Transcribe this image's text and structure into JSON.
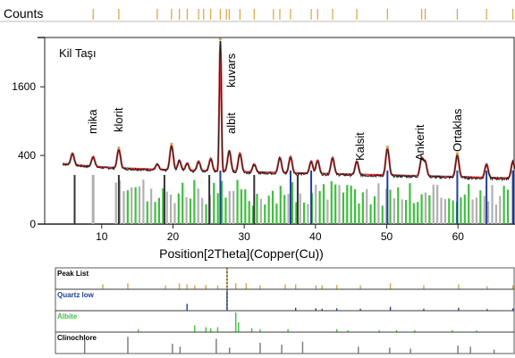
{
  "colors": {
    "peak_tick": "#d9a23f",
    "observed": "#1a1a1a",
    "calculated": "#cc2a2a",
    "quartz": "#1f3f9a",
    "albite": "#3fbf3f",
    "mica_bar": "#b0b0b0",
    "clinochlore": "#777777",
    "frame": "#222222"
  },
  "chart_data": {
    "type": "line",
    "title": "Kil Taşı",
    "counts_label": "Counts",
    "xlabel": "Position[2Theta](Copper(Cu))",
    "ylabel": "Counts",
    "xlim": [
      2,
      68
    ],
    "x_ticks": [
      10,
      20,
      30,
      40,
      50,
      60
    ],
    "y_ticks": [
      {
        "value": 0,
        "label": "0"
      },
      {
        "value": 400,
        "label": "400"
      },
      {
        "value": 1600,
        "label": "1600"
      }
    ],
    "y_scale": "sqrt",
    "ylim": [
      0,
      2900
    ],
    "grid": false,
    "background_level": 260,
    "peaks": [
      {
        "x": 5.9,
        "y": 420
      },
      {
        "x": 8.8,
        "y": 380
      },
      {
        "x": 12.4,
        "y": 470
      },
      {
        "x": 17.8,
        "y": 300
      },
      {
        "x": 19.8,
        "y": 520
      },
      {
        "x": 20.9,
        "y": 340
      },
      {
        "x": 22.0,
        "y": 310
      },
      {
        "x": 23.6,
        "y": 330
      },
      {
        "x": 25.3,
        "y": 360
      },
      {
        "x": 26.65,
        "y": 2850
      },
      {
        "x": 27.9,
        "y": 450
      },
      {
        "x": 29.4,
        "y": 420
      },
      {
        "x": 31.4,
        "y": 300
      },
      {
        "x": 35.0,
        "y": 370
      },
      {
        "x": 36.5,
        "y": 380
      },
      {
        "x": 39.4,
        "y": 330
      },
      {
        "x": 40.3,
        "y": 340
      },
      {
        "x": 42.4,
        "y": 370
      },
      {
        "x": 45.8,
        "y": 330
      },
      {
        "x": 50.1,
        "y": 480
      },
      {
        "x": 54.9,
        "y": 360
      },
      {
        "x": 55.4,
        "y": 320
      },
      {
        "x": 59.9,
        "y": 400
      },
      {
        "x": 64.0,
        "y": 300
      },
      {
        "x": 67.7,
        "y": 330
      }
    ],
    "annotations": [
      {
        "text": "mika",
        "x": 8.8
      },
      {
        "text": "klorit",
        "x": 12.4
      },
      {
        "text": "kuvars",
        "x": 28.2
      },
      {
        "text": "albit",
        "x": 28.2
      },
      {
        "text": "Kalsit",
        "x": 46.3
      },
      {
        "text": "Ankerit",
        "x": 54.7
      },
      {
        "text": "Ortaklas",
        "x": 60.0
      }
    ],
    "peak_list_positions": [
      8.8,
      12.4,
      17.8,
      19.8,
      20.9,
      22.0,
      23.6,
      24.3,
      25.3,
      26.65,
      27.5,
      27.9,
      29.4,
      31.4,
      34.1,
      35.0,
      36.5,
      39.4,
      40.3,
      42.4,
      45.8,
      50.1,
      54.9,
      55.4,
      59.9,
      64.0,
      67.7
    ],
    "reference_panels": [
      {
        "name": "Peak List",
        "lines": [
          [
            8.8,
            0.25
          ],
          [
            12.4,
            0.3
          ],
          [
            17.8,
            0.2
          ],
          [
            19.8,
            0.3
          ],
          [
            20.9,
            0.25
          ],
          [
            22.0,
            0.2
          ],
          [
            23.6,
            0.22
          ],
          [
            25.3,
            0.2
          ],
          [
            26.65,
            1.0
          ],
          [
            27.9,
            0.3
          ],
          [
            29.4,
            0.3
          ],
          [
            31.4,
            0.2
          ],
          [
            35.0,
            0.25
          ],
          [
            36.5,
            0.25
          ],
          [
            39.4,
            0.2
          ],
          [
            40.3,
            0.2
          ],
          [
            42.4,
            0.22
          ],
          [
            45.8,
            0.2
          ],
          [
            50.1,
            0.3
          ],
          [
            54.9,
            0.2
          ],
          [
            59.9,
            0.25
          ],
          [
            64.0,
            0.15
          ],
          [
            67.7,
            0.2
          ]
        ]
      },
      {
        "name": "Quartz low",
        "lines": [
          [
            20.9,
            0.35
          ],
          [
            26.65,
            1.0
          ],
          [
            36.5,
            0.15
          ],
          [
            39.4,
            0.12
          ],
          [
            40.3,
            0.1
          ],
          [
            42.4,
            0.12
          ],
          [
            45.8,
            0.1
          ],
          [
            50.1,
            0.2
          ],
          [
            54.9,
            0.1
          ],
          [
            59.9,
            0.15
          ],
          [
            64.0,
            0.08
          ],
          [
            67.7,
            0.12
          ]
        ]
      },
      {
        "name": "Albite",
        "lines": [
          [
            13.9,
            0.15
          ],
          [
            22.0,
            0.35
          ],
          [
            23.6,
            0.25
          ],
          [
            24.3,
            0.2
          ],
          [
            25.3,
            0.25
          ],
          [
            27.9,
            1.0
          ],
          [
            28.3,
            0.5
          ],
          [
            30.2,
            0.2
          ],
          [
            31.4,
            0.15
          ],
          [
            35.4,
            0.15
          ],
          [
            42.4,
            0.15
          ],
          [
            44.0,
            0.1
          ],
          [
            48.5,
            0.1
          ],
          [
            51.0,
            0.1
          ],
          [
            53.6,
            0.1
          ],
          [
            59.0,
            0.1
          ],
          [
            62.5,
            0.08
          ]
        ]
      },
      {
        "name": "Clinochlore",
        "lines": [
          [
            6.2,
            0.7
          ],
          [
            12.4,
            0.85
          ],
          [
            18.8,
            0.5
          ],
          [
            19.9,
            0.35
          ],
          [
            25.1,
            0.75
          ],
          [
            27.0,
            0.3
          ],
          [
            31.4,
            0.55
          ],
          [
            34.5,
            0.45
          ],
          [
            37.5,
            0.6
          ],
          [
            45.5,
            0.35
          ],
          [
            50.0,
            0.3
          ],
          [
            53.0,
            0.25
          ],
          [
            59.8,
            0.4
          ],
          [
            61.6,
            0.35
          ],
          [
            65.0,
            0.2
          ]
        ]
      }
    ]
  }
}
